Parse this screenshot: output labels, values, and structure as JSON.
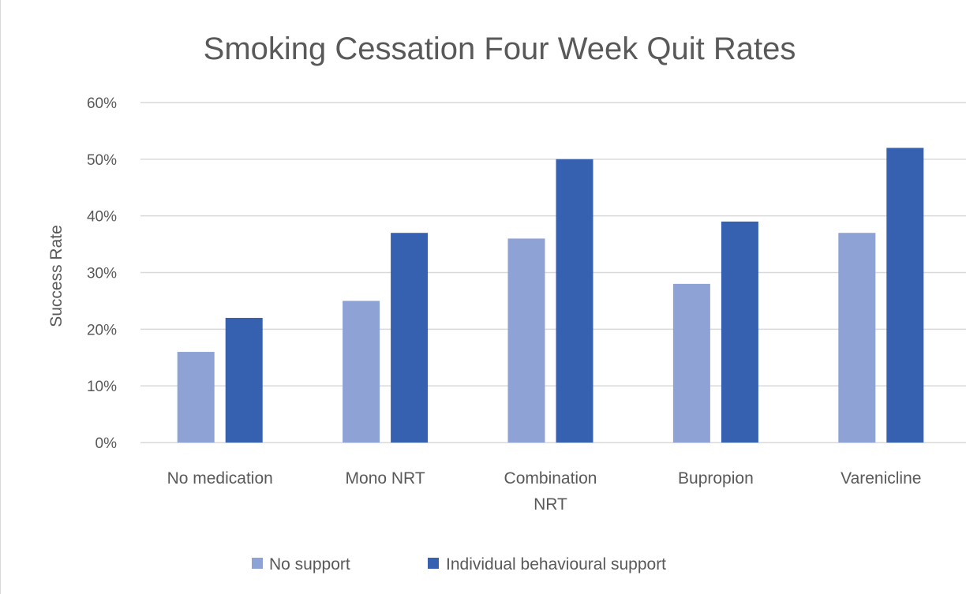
{
  "chart_data": {
    "type": "bar",
    "title": "Smoking Cessation Four Week Quit Rates",
    "ylabel": "Success Rate",
    "xlabel": "",
    "categories": [
      [
        "No medication"
      ],
      [
        "Mono NRT"
      ],
      [
        "Combination",
        "NRT"
      ],
      [
        "Bupropion"
      ],
      [
        "Varenicline"
      ]
    ],
    "series": [
      {
        "name": "No support",
        "color": "#8ea2d6",
        "values": [
          16,
          25,
          36,
          28,
          37
        ]
      },
      {
        "name": "Individual behavioural support",
        "color": "#3660b0",
        "values": [
          22,
          37,
          50,
          39,
          52
        ]
      }
    ],
    "ylim": [
      0,
      60
    ],
    "yticks": [
      0,
      10,
      20,
      30,
      40,
      50,
      60
    ],
    "ytick_labels": [
      "0%",
      "10%",
      "20%",
      "30%",
      "40%",
      "50%",
      "60%"
    ],
    "grid": true,
    "legend_position": "bottom"
  }
}
